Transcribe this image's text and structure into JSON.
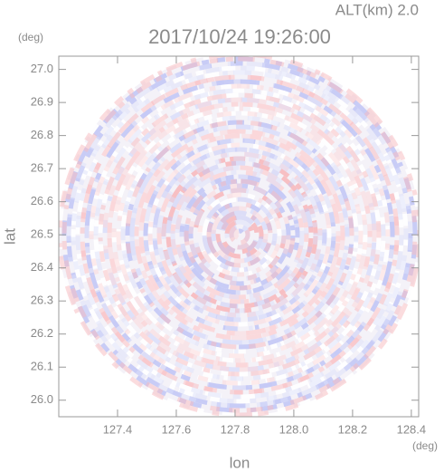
{
  "chart_data": {
    "type": "image",
    "title": "2017/10/24 19:26:00",
    "annotation": "ALT(km) 2.0",
    "xlabel": "lon",
    "ylabel": "lat",
    "xunit": "(deg)",
    "yunit": "(deg)",
    "xlim": [
      127.2,
      128.425
    ],
    "ylim": [
      25.95,
      27.04
    ],
    "xticks": [
      127.4,
      127.6,
      {
        "value": 127.8,
        "label": "127.8"
      },
      {
        "value": 128,
        "label": "128.0"
      },
      128.2,
      128.4
    ],
    "yticks": [
      {
        "value": 26,
        "label": "26.0"
      },
      26.1,
      26.2,
      26.3,
      26.4,
      26.5,
      26.6,
      26.7,
      26.8,
      26.9,
      {
        "value": 27,
        "label": "27.0"
      }
    ]
  }
}
